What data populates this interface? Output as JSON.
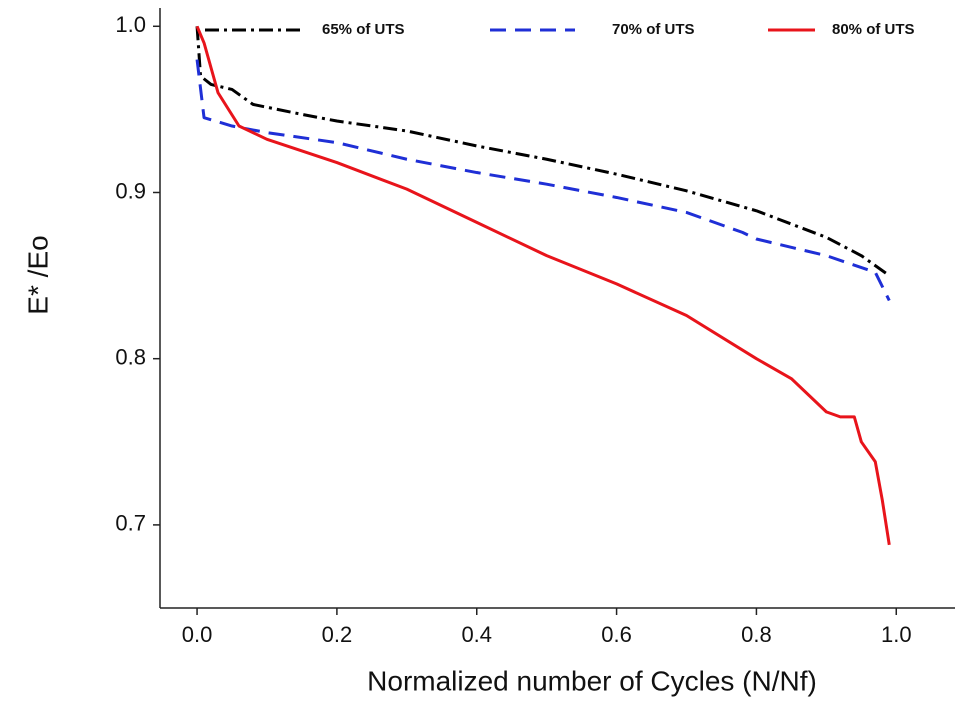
{
  "chart_data": {
    "type": "line",
    "x_label": "Normalized number of Cycles (N/Nf)",
    "y_label": "E* /Eo",
    "xlim": [
      -0.053,
      1.084
    ],
    "ylim": [
      0.65,
      1.011
    ],
    "xticks": [
      {
        "value": 0,
        "label": "0.0"
      },
      0.2,
      0.4,
      0.6,
      0.8,
      {
        "value": 1,
        "label": "1.0"
      }
    ],
    "yticks": [
      0.7,
      0.8,
      0.9,
      {
        "value": 1,
        "label": "1.0"
      }
    ],
    "grid": false,
    "legend": "top",
    "series": [
      {
        "name": "65% of UTS",
        "color": "#000000",
        "dash": "dashdot",
        "x": [
          0,
          0.005,
          0.02,
          0.05,
          0.08,
          0.15,
          0.2,
          0.3,
          0.4,
          0.5,
          0.6,
          0.7,
          0.8,
          0.9,
          0.95,
          0.99
        ],
        "values": [
          1.0,
          0.97,
          0.965,
          0.962,
          0.953,
          0.947,
          0.943,
          0.937,
          0.928,
          0.92,
          0.911,
          0.901,
          0.889,
          0.873,
          0.862,
          0.85
        ]
      },
      {
        "name": "70% of UTS",
        "color": "#1f2fd6",
        "dash": "dashed",
        "x": [
          0,
          0.01,
          0.05,
          0.1,
          0.2,
          0.3,
          0.4,
          0.5,
          0.6,
          0.7,
          0.78,
          0.8,
          0.9,
          0.97,
          0.99
        ],
        "values": [
          0.98,
          0.945,
          0.94,
          0.936,
          0.93,
          0.92,
          0.912,
          0.905,
          0.897,
          0.888,
          0.876,
          0.872,
          0.862,
          0.852,
          0.835
        ]
      },
      {
        "name": "80% of UTS",
        "color": "#e8141b",
        "dash": "solid",
        "x": [
          0,
          0.01,
          0.03,
          0.06,
          0.1,
          0.2,
          0.3,
          0.4,
          0.5,
          0.6,
          0.7,
          0.8,
          0.85,
          0.9,
          0.92,
          0.94,
          0.95,
          0.97,
          0.98,
          0.99
        ],
        "values": [
          1.0,
          0.99,
          0.96,
          0.94,
          0.932,
          0.918,
          0.902,
          0.882,
          0.862,
          0.845,
          0.826,
          0.8,
          0.788,
          0.768,
          0.765,
          0.765,
          0.75,
          0.738,
          0.715,
          0.688
        ]
      }
    ]
  }
}
